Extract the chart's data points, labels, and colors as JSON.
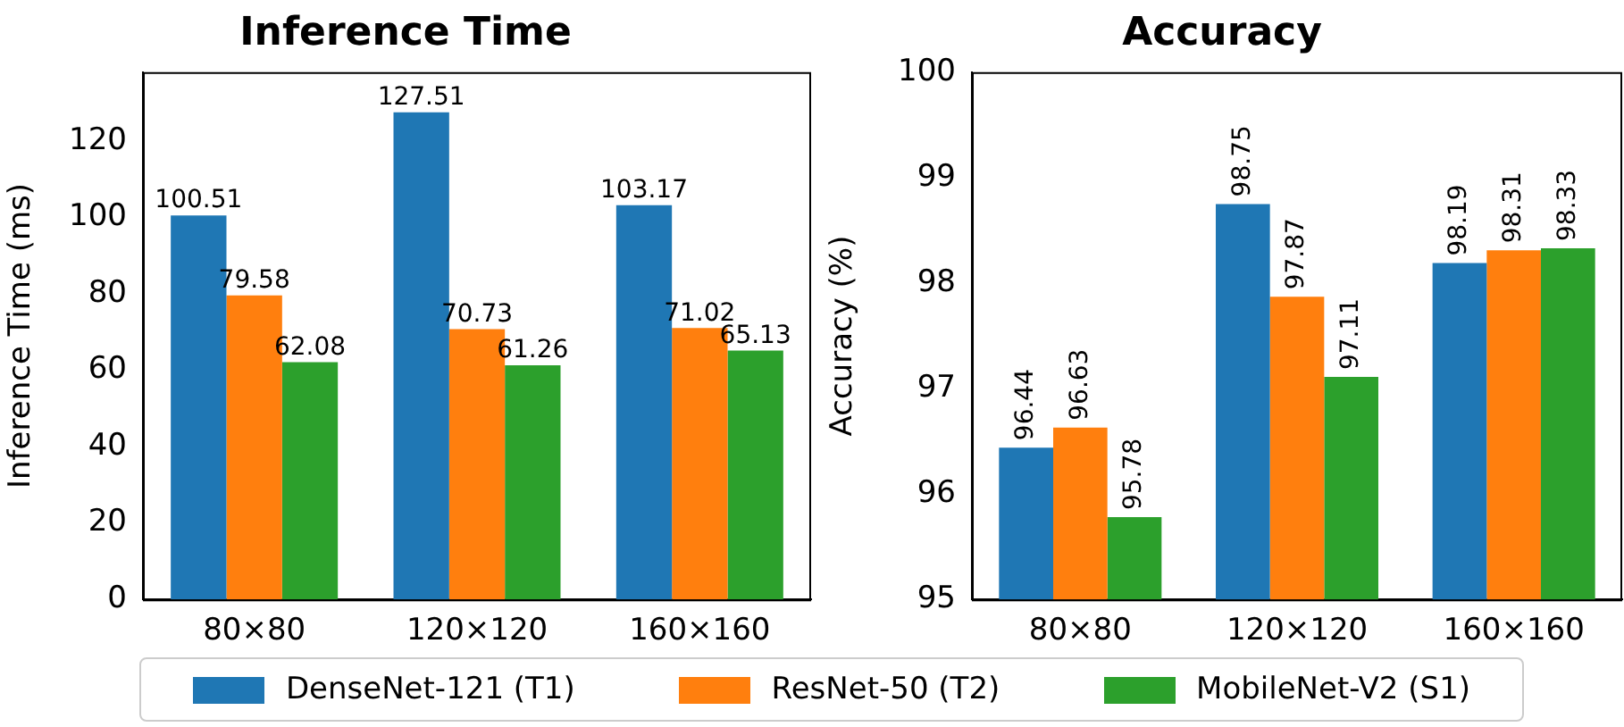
{
  "chart_data": [
    {
      "type": "bar",
      "title": "Inference Time",
      "ylabel": "Inference Time (ms)",
      "categories": [
        "80×80",
        "120×120",
        "160×160"
      ],
      "series": [
        {
          "name": "DenseNet-121 (T1)",
          "color": "#1f77b4",
          "values": [
            100.51,
            127.51,
            103.17
          ]
        },
        {
          "name": "ResNet-50 (T2)",
          "color": "#ff7f0e",
          "values": [
            79.58,
            70.73,
            71.02
          ]
        },
        {
          "name": "MobileNet-V2 (S1)",
          "color": "#2ca02c",
          "values": [
            62.08,
            61.26,
            65.13
          ]
        }
      ],
      "ylim": [
        0,
        138
      ],
      "yticks": [
        0,
        20,
        40,
        60,
        80,
        100,
        120
      ],
      "grid": false,
      "data_labels": true,
      "legend": "bottom"
    },
    {
      "type": "bar",
      "title": "Accuracy",
      "ylabel": "Accuracy (%)",
      "categories": [
        "80×80",
        "120×120",
        "160×160"
      ],
      "series": [
        {
          "color": "#1f77b4",
          "values": [
            96.44,
            98.75,
            98.19
          ]
        },
        {
          "color": "#ff7f0e",
          "values": [
            96.63,
            97.87,
            98.31
          ]
        },
        {
          "color": "#2ca02c",
          "values": [
            95.78,
            97.11,
            98.33
          ]
        }
      ],
      "ylim": [
        95,
        100
      ],
      "yticks": [
        95,
        96,
        97,
        98,
        99,
        100
      ],
      "grid": false,
      "data_labels": true,
      "legend": "bottom"
    }
  ]
}
